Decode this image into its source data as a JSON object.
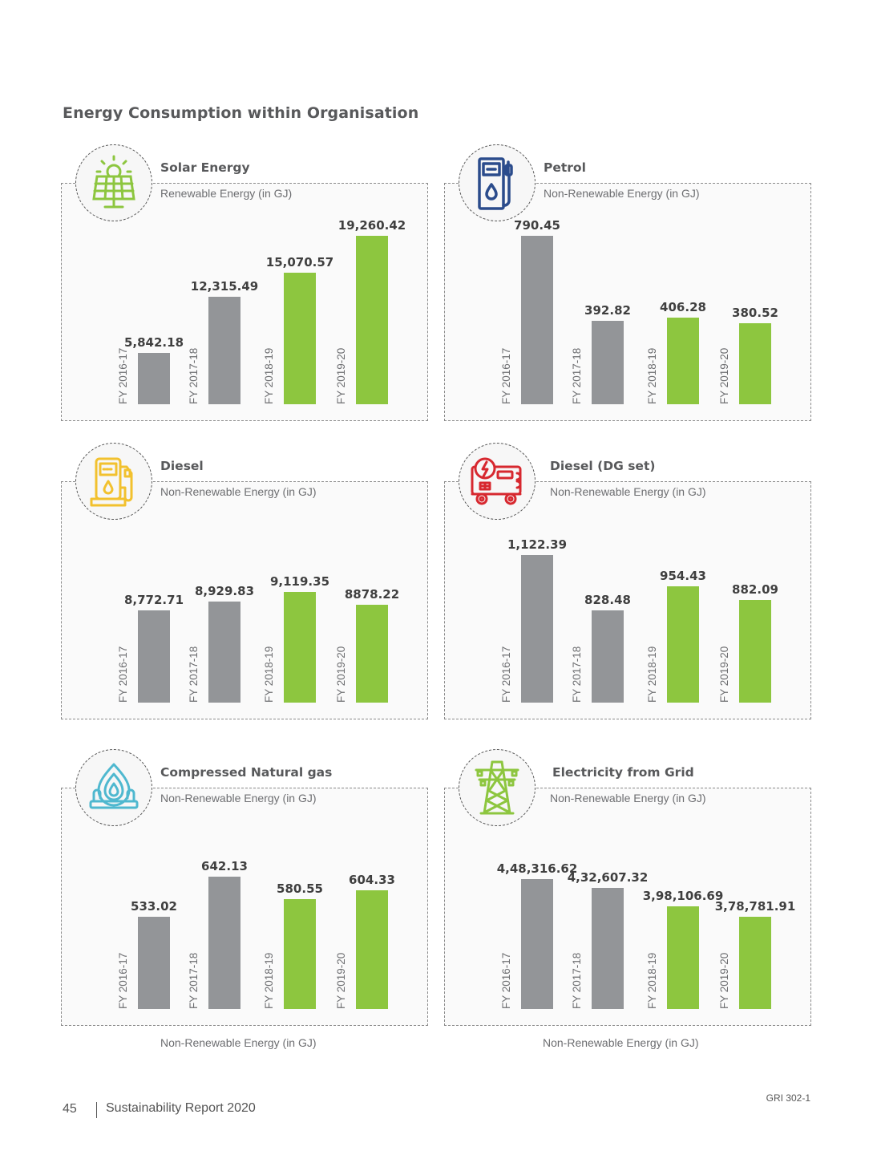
{
  "page": {
    "title": "Energy Consumption within Organisation",
    "footer": {
      "page_number": "45",
      "report_title": "Sustainability Report 2020",
      "gri_reference": "GRI 302-1"
    },
    "bottom_captions": [
      "Non-Renewable Energy (in GJ)",
      "Non-Renewable Energy (in GJ)"
    ]
  },
  "colors": {
    "past_bar": "#939598",
    "recent_bar": "#8dc63f",
    "solar_icon": "#8dc63f",
    "petrol_icon": "#2b4c8c",
    "diesel_icon": "#f2c12e",
    "dg_icon": "#d7282f",
    "cng_icon": "#4fb8cf",
    "grid_icon": "#8dc63f"
  },
  "chart_data": [
    {
      "type": "bar",
      "title": "Solar Energy",
      "subtitle": "Renewable Energy (in GJ)",
      "icon": "solar-panel-icon",
      "categories": [
        "FY 2016-17",
        "FY 2017-18",
        "FY 2018-19",
        "FY 2019-20"
      ],
      "values": [
        5842.18,
        12315.49,
        15070.57,
        19260.42
      ],
      "value_labels": [
        "5,842.18",
        "12,315.49",
        "15,070.57",
        "19,260.42"
      ],
      "bar_colors": [
        "past",
        "past",
        "recent",
        "recent"
      ],
      "xlabel": "",
      "ylabel": "",
      "grid": false
    },
    {
      "type": "bar",
      "title": "Petrol",
      "subtitle": "Non-Renewable Energy (in GJ)",
      "icon": "fuel-pump-icon",
      "categories": [
        "FY 2016-17",
        "FY 2017-18",
        "FY 2018-19",
        "FY 2019-20"
      ],
      "values": [
        790.45,
        392.82,
        406.28,
        380.52
      ],
      "value_labels": [
        "790.45",
        "392.82",
        "406.28",
        "380.52"
      ],
      "bar_colors": [
        "past",
        "past",
        "recent",
        "recent"
      ],
      "xlabel": "",
      "ylabel": "",
      "grid": false
    },
    {
      "type": "bar",
      "title": "Diesel",
      "subtitle": "Non-Renewable Energy (in GJ)",
      "icon": "diesel-pump-icon",
      "categories": [
        "FY 2016-17",
        "FY 2017-18",
        "FY 2018-19",
        "FY 2019-20"
      ],
      "values": [
        8772.71,
        8929.83,
        9119.35,
        8878.22
      ],
      "value_labels": [
        "8,772.71",
        "8,929.83",
        "9,119.35",
        "8878.22"
      ],
      "bar_colors": [
        "past",
        "past",
        "recent",
        "recent"
      ],
      "xlabel": "",
      "ylabel": "",
      "grid": false
    },
    {
      "type": "bar",
      "title": "Diesel (DG set)",
      "subtitle": "Non-Renewable Energy (in GJ)",
      "icon": "generator-icon",
      "categories": [
        "FY 2016-17",
        "FY 2017-18",
        "FY 2018-19",
        "FY 2019-20"
      ],
      "values": [
        1122.39,
        828.48,
        954.43,
        882.09
      ],
      "value_labels": [
        "1,122.39",
        "828.48",
        "954.43",
        "882.09"
      ],
      "bar_colors": [
        "past",
        "past",
        "recent",
        "recent"
      ],
      "xlabel": "",
      "ylabel": "",
      "grid": false
    },
    {
      "type": "bar",
      "title": "Compressed Natural gas",
      "subtitle": "Non-Renewable Energy (in GJ)",
      "icon": "gas-flame-icon",
      "categories": [
        "FY 2016-17",
        "FY 2017-18",
        "FY 2018-19",
        "FY 2019-20"
      ],
      "values": [
        533.02,
        642.13,
        580.55,
        604.33
      ],
      "value_labels": [
        "533.02",
        "642.13",
        "580.55",
        "604.33"
      ],
      "bar_colors": [
        "past",
        "past",
        "recent",
        "recent"
      ],
      "xlabel": "",
      "ylabel": "",
      "grid": false
    },
    {
      "type": "bar",
      "title": "Electricity from Grid",
      "subtitle": "Non-Renewable Energy (in GJ)",
      "icon": "power-tower-icon",
      "categories": [
        "FY 2016-17",
        "FY 2017-18",
        "FY 2018-19",
        "FY 2019-20"
      ],
      "values": [
        448316.62,
        432607.32,
        398106.69,
        378781.91
      ],
      "value_labels": [
        "4,48,316.62",
        "4,32,607.32",
        "3,98,106.69",
        "3,78,781.91"
      ],
      "bar_colors": [
        "past",
        "past",
        "recent",
        "recent"
      ],
      "xlabel": "",
      "ylabel": "",
      "grid": false
    }
  ]
}
